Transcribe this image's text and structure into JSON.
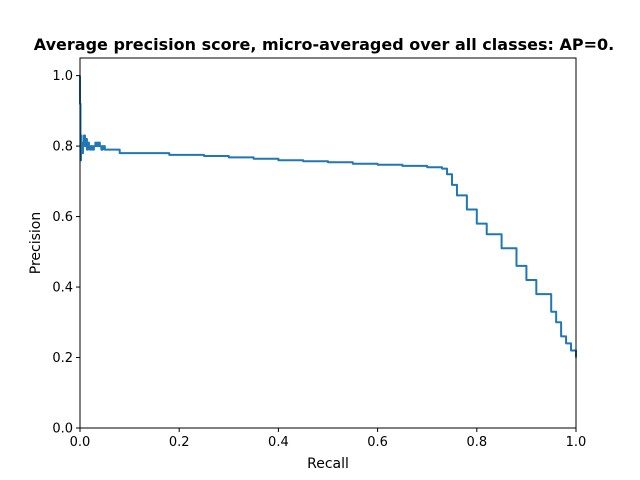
{
  "chart_data": {
    "type": "line",
    "title": "Average precision score, micro-averaged over all classes: AP=0.",
    "xlabel": "Recall",
    "ylabel": "Precision",
    "xlim": [
      0.0,
      1.0
    ],
    "ylim": [
      0.0,
      1.05
    ],
    "xticks": [
      "0.0",
      "0.2",
      "0.4",
      "0.6",
      "0.8",
      "1.0"
    ],
    "yticks": [
      "0.0",
      "0.2",
      "0.4",
      "0.6",
      "0.8",
      "1.0"
    ],
    "grid": false,
    "legend": "none",
    "series": [
      {
        "color": "#1f77b4",
        "drawstyle": "steps-post",
        "x": [
          0.0,
          0.0,
          0.001,
          0.002,
          0.003,
          0.004,
          0.006,
          0.008,
          0.01,
          0.012,
          0.014,
          0.016,
          0.018,
          0.02,
          0.022,
          0.025,
          0.028,
          0.031,
          0.034,
          0.037,
          0.04,
          0.043,
          0.046,
          0.05,
          0.055,
          0.06,
          0.07,
          0.08,
          0.1,
          0.12,
          0.15,
          0.18,
          0.2,
          0.25,
          0.3,
          0.35,
          0.4,
          0.45,
          0.5,
          0.55,
          0.6,
          0.65,
          0.7,
          0.73,
          0.74,
          0.75,
          0.76,
          0.78,
          0.8,
          0.82,
          0.85,
          0.88,
          0.9,
          0.92,
          0.95,
          0.96,
          0.97,
          0.98,
          0.99,
          1.0
        ],
        "y": [
          1.0,
          0.92,
          0.76,
          0.83,
          0.8,
          0.78,
          0.81,
          0.83,
          0.8,
          0.82,
          0.79,
          0.81,
          0.8,
          0.79,
          0.8,
          0.79,
          0.8,
          0.81,
          0.8,
          0.81,
          0.8,
          0.79,
          0.8,
          0.79,
          0.79,
          0.79,
          0.79,
          0.78,
          0.78,
          0.78,
          0.78,
          0.775,
          0.775,
          0.772,
          0.768,
          0.764,
          0.76,
          0.757,
          0.754,
          0.75,
          0.747,
          0.744,
          0.74,
          0.736,
          0.72,
          0.69,
          0.66,
          0.62,
          0.58,
          0.55,
          0.51,
          0.46,
          0.42,
          0.38,
          0.33,
          0.3,
          0.26,
          0.24,
          0.22,
          0.2
        ]
      }
    ]
  }
}
